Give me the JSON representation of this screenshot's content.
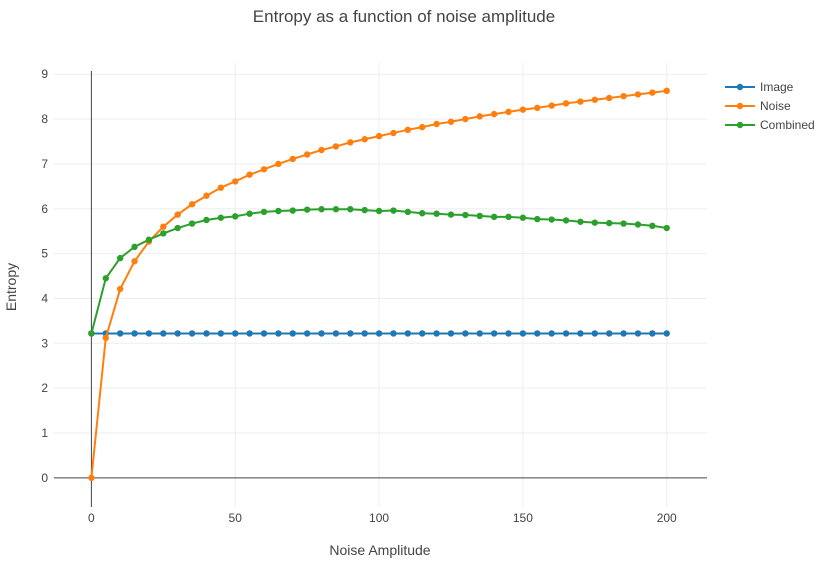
{
  "chart_data": {
    "type": "line",
    "title": "Entropy as a function of noise amplitude",
    "xlabel": "Noise Amplitude",
    "ylabel": "Entropy",
    "xlim": [
      -13,
      214
    ],
    "ylim": [
      -0.65,
      9.25
    ],
    "xticks": [
      0,
      50,
      100,
      150,
      200
    ],
    "yticks": [
      0,
      1,
      2,
      3,
      4,
      5,
      6,
      7,
      8,
      9
    ],
    "grid": true,
    "legend_position": "top-right",
    "x": [
      0,
      5,
      10,
      15,
      20,
      25,
      30,
      35,
      40,
      45,
      50,
      55,
      60,
      65,
      70,
      75,
      80,
      85,
      90,
      95,
      100,
      105,
      110,
      115,
      120,
      125,
      130,
      135,
      140,
      145,
      150,
      155,
      160,
      165,
      170,
      175,
      180,
      185,
      190,
      195,
      200
    ],
    "series": [
      {
        "name": "Image",
        "color": "#1f77b4",
        "values": [
          3.22,
          3.22,
          3.22,
          3.22,
          3.22,
          3.22,
          3.22,
          3.22,
          3.22,
          3.22,
          3.22,
          3.22,
          3.22,
          3.22,
          3.22,
          3.22,
          3.22,
          3.22,
          3.22,
          3.22,
          3.22,
          3.22,
          3.22,
          3.22,
          3.22,
          3.22,
          3.22,
          3.22,
          3.22,
          3.22,
          3.22,
          3.22,
          3.22,
          3.22,
          3.22,
          3.22,
          3.22,
          3.22,
          3.22,
          3.22,
          3.22
        ]
      },
      {
        "name": "Noise",
        "color": "#ff7f0e",
        "values": [
          0,
          3.12,
          4.21,
          4.83,
          5.27,
          5.6,
          5.87,
          6.1,
          6.29,
          6.47,
          6.61,
          6.76,
          6.88,
          7.0,
          7.11,
          7.21,
          7.31,
          7.39,
          7.48,
          7.55,
          7.62,
          7.69,
          7.76,
          7.82,
          7.89,
          7.94,
          8.0,
          8.06,
          8.11,
          8.16,
          8.21,
          8.25,
          8.3,
          8.35,
          8.39,
          8.43,
          8.47,
          8.51,
          8.55,
          8.59,
          8.63
        ]
      },
      {
        "name": "Combined",
        "color": "#2ca02c",
        "values": [
          3.22,
          4.45,
          4.9,
          5.15,
          5.31,
          5.45,
          5.57,
          5.67,
          5.75,
          5.8,
          5.83,
          5.89,
          5.93,
          5.95,
          5.96,
          5.98,
          5.99,
          5.99,
          5.99,
          5.97,
          5.95,
          5.96,
          5.93,
          5.9,
          5.89,
          5.87,
          5.86,
          5.84,
          5.82,
          5.82,
          5.8,
          5.77,
          5.76,
          5.74,
          5.71,
          5.69,
          5.68,
          5.67,
          5.65,
          5.62,
          5.57
        ]
      }
    ]
  }
}
